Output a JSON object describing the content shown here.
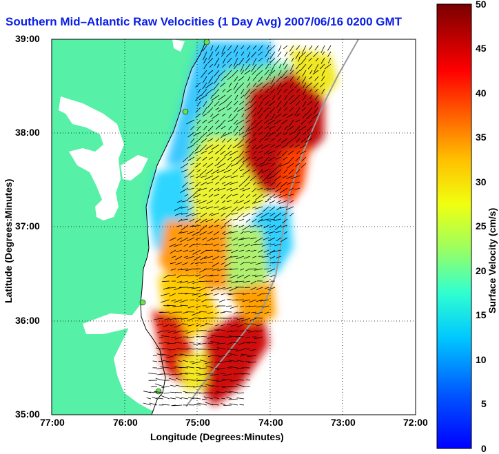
{
  "title": "Southern Mid–Atlantic Raw Velocities (1 Day Avg) 2007/06/16 0200 GMT",
  "xlabel": "Longitude (Degrees:Minutes)",
  "ylabel": "Latitude (Degrees:Minutes)",
  "x_ticks": [
    "77:00",
    "76:00",
    "75:00",
    "74:00",
    "73:00",
    "72:00"
  ],
  "y_ticks": [
    "39:00",
    "38:00",
    "37:00",
    "36:00",
    "35:00"
  ],
  "colorbar": {
    "label": "Surface Velocity (cm/s)",
    "ticks": [
      "50",
      "45",
      "40",
      "35",
      "30",
      "25",
      "20",
      "15",
      "10",
      "5",
      "0"
    ],
    "range": [
      0,
      50
    ]
  },
  "map": {
    "lon_range": [
      -77,
      -72
    ],
    "lat_range": [
      35,
      39
    ],
    "grid": "dotted",
    "land_color": "#56f0a6",
    "water_color": "#ffffff",
    "station_color": "#6be04c"
  }
}
